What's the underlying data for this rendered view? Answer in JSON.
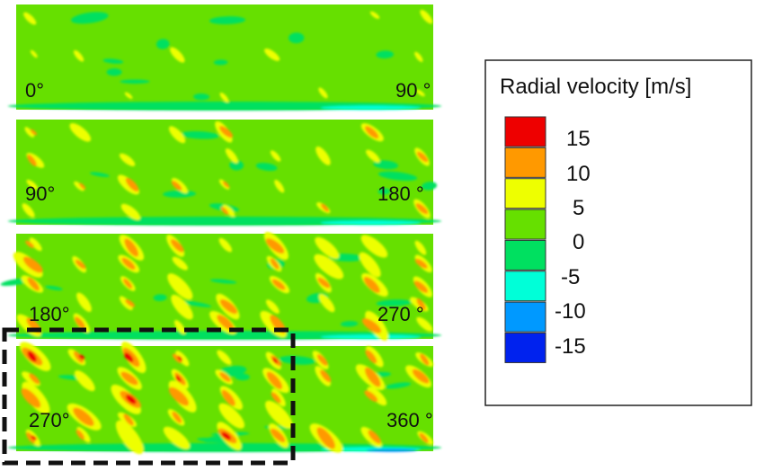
{
  "chart_data": {
    "type": "heatmap",
    "quantity": "Radial velocity",
    "colorbar": {
      "title": "Radial velocity [m/s]",
      "tick_labels": [
        "15",
        "10",
        "5",
        "0",
        "-5",
        "-10",
        "-15"
      ],
      "levels": [
        {
          "upper": 20,
          "color": "#ee0000"
        },
        {
          "upper": 15,
          "color": "#ff9900"
        },
        {
          "upper": 10,
          "color": "#eeff00"
        },
        {
          "upper": 5,
          "color": "#66e000"
        },
        {
          "upper": 0,
          "color": "#00e060"
        },
        {
          "upper": -5,
          "color": "#00ffd8"
        },
        {
          "upper": -10,
          "color": "#0099ff"
        },
        {
          "upper": -15,
          "color": "#0022ee"
        }
      ]
    },
    "panels": [
      {
        "label_start": "0°",
        "label_end": "90 °",
        "activity": 0.15
      },
      {
        "label_start": "90°",
        "label_end": "180 °",
        "activity": 0.45
      },
      {
        "label_start": "180°",
        "label_end": "270 °",
        "activity": 0.8
      },
      {
        "label_start": "270°",
        "label_end": "360 °",
        "activity": 1.0
      }
    ],
    "highlight": {
      "panel": 4,
      "style": "dashed",
      "color": "#111111"
    }
  }
}
